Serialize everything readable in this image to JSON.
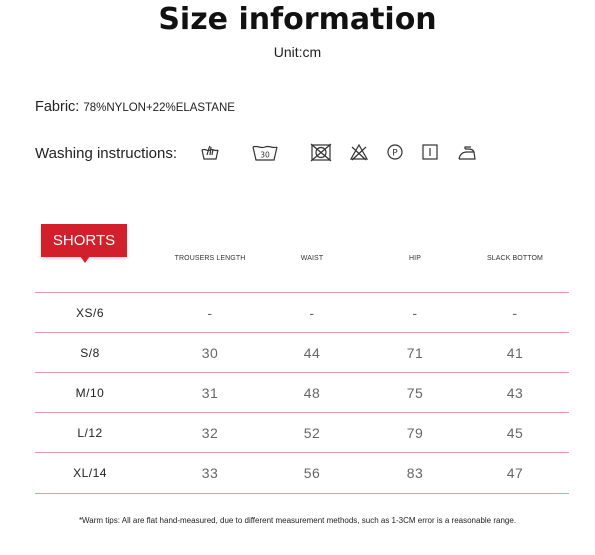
{
  "title": "Size information",
  "unit": "Unit:cm",
  "fabric": {
    "label": "Fabric:",
    "value": "78%NYLON+22%ELASTANE"
  },
  "washing": {
    "label": "Washing instructions:",
    "icons": [
      "hand-wash-icon",
      "wash-30-icon",
      "no-tumble-dry-icon",
      "no-bleach-icon",
      "dry-clean-p-icon",
      "line-dry-icon",
      "iron-low-icon"
    ]
  },
  "table": {
    "tag": "SHORTS",
    "columns": [
      "TROUSERS LENGTH",
      "WAIST",
      "HIP",
      "SLACK BOTTOM"
    ],
    "rows": [
      {
        "size": "XS/6",
        "values": [
          "-",
          "-",
          "-",
          "-"
        ]
      },
      {
        "size": "S/8",
        "values": [
          "30",
          "44",
          "71",
          "41"
        ]
      },
      {
        "size": "M/10",
        "values": [
          "31",
          "48",
          "75",
          "43"
        ]
      },
      {
        "size": "L/12",
        "values": [
          "32",
          "52",
          "79",
          "45"
        ]
      },
      {
        "size": "XL/14",
        "values": [
          "33",
          "56",
          "83",
          "47"
        ]
      }
    ],
    "accent_color": "#d1202c",
    "line_color": "#e8999f"
  },
  "note": "*Warm tips: All are flat hand-measured, due to different measurement methods, such as 1-3CM error is a reasonable range."
}
